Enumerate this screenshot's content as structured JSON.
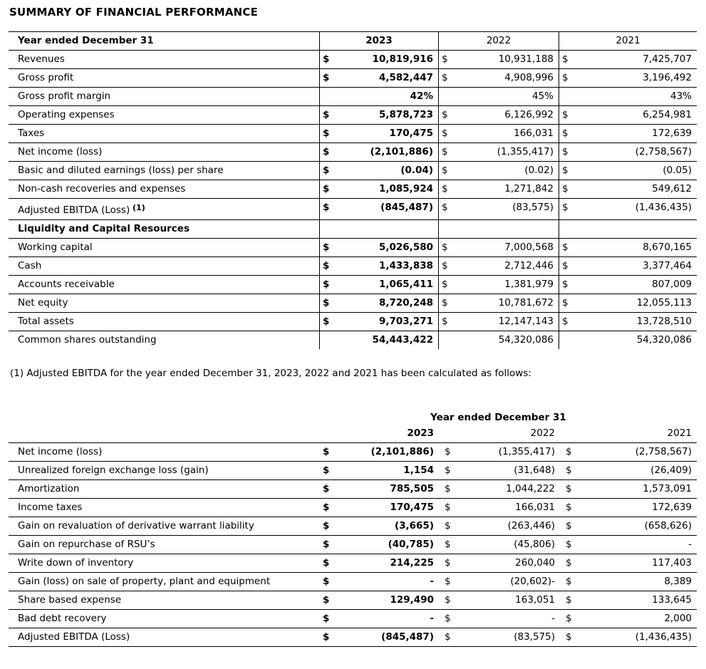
{
  "page_title": "SUMMARY OF FINANCIAL PERFORMANCE",
  "summary_table": {
    "header_label": "Year ended December 31",
    "years": [
      "2023",
      "2022",
      "2021"
    ],
    "rows": [
      {
        "label": "Revenues",
        "cells": [
          [
            "$",
            "10,819,916"
          ],
          [
            "$",
            "10,931,188"
          ],
          [
            "$",
            "7,425,707"
          ]
        ]
      },
      {
        "label": "Gross profit",
        "cells": [
          [
            "$",
            "4,582,447"
          ],
          [
            "$",
            "4,908,996"
          ],
          [
            "$",
            "3,196,492"
          ]
        ]
      },
      {
        "label": "Gross profit margin",
        "cells": [
          [
            "",
            "42%"
          ],
          [
            "",
            "45%"
          ],
          [
            "",
            "43%"
          ]
        ]
      },
      {
        "label": "Operating expenses",
        "cells": [
          [
            "$",
            "5,878,723"
          ],
          [
            "$",
            "6,126,992"
          ],
          [
            "$",
            "6,254,981"
          ]
        ]
      },
      {
        "label": "Taxes",
        "cells": [
          [
            "$",
            "170,475"
          ],
          [
            "$",
            "166,031"
          ],
          [
            "$",
            "172,639"
          ]
        ]
      },
      {
        "label": "Net income (loss)",
        "cells": [
          [
            "$",
            "(2,101,886)"
          ],
          [
            "$",
            "(1,355,417)"
          ],
          [
            "$",
            "(2,758,567)"
          ]
        ]
      },
      {
        "label": "Basic and diluted earnings (loss) per share",
        "cells": [
          [
            "$",
            "(0.04)"
          ],
          [
            "$",
            "(0.02)"
          ],
          [
            "$",
            "(0.05)"
          ]
        ]
      },
      {
        "label": "Non-cash recoveries and expenses",
        "cells": [
          [
            "$",
            "1,085,924"
          ],
          [
            "$",
            "1,271,842"
          ],
          [
            "$",
            "549,612"
          ]
        ]
      },
      {
        "label": "Adjusted EBITDA (Loss)",
        "sup": "(1)",
        "cells": [
          [
            "$",
            "(845,487)"
          ],
          [
            "$",
            "(83,575)"
          ],
          [
            "$",
            "(1,436,435)"
          ]
        ]
      },
      {
        "label": "Liquidity and Capital Resources",
        "type": "section",
        "cells": [
          [
            "",
            ""
          ],
          [
            "",
            ""
          ],
          [
            "",
            ""
          ]
        ]
      },
      {
        "label": "Working capital",
        "cells": [
          [
            "$",
            "5,026,580"
          ],
          [
            "$",
            "7,000,568"
          ],
          [
            "$",
            "8,670,165"
          ]
        ]
      },
      {
        "label": "Cash",
        "cells": [
          [
            "$",
            "1,433,838"
          ],
          [
            "$",
            "2,712,446"
          ],
          [
            "$",
            "3,377,464"
          ]
        ]
      },
      {
        "label": "Accounts receivable",
        "cells": [
          [
            "$",
            "1,065,411"
          ],
          [
            "$",
            "1,381,979"
          ],
          [
            "$",
            "807,009"
          ]
        ]
      },
      {
        "label": "Net equity",
        "cells": [
          [
            "$",
            "8,720,248"
          ],
          [
            "$",
            "10,781,672"
          ],
          [
            "$",
            "12,055,113"
          ]
        ]
      },
      {
        "label": "Total assets",
        "cells": [
          [
            "$",
            "9,703,271"
          ],
          [
            "$",
            "12,147,143"
          ],
          [
            "$",
            "13,728,510"
          ]
        ]
      },
      {
        "label": "Common shares outstanding",
        "cells": [
          [
            "",
            "54,443,422"
          ],
          [
            "",
            "54,320,086"
          ],
          [
            "",
            "54,320,086"
          ]
        ]
      }
    ]
  },
  "footnote": "(1) Adjusted EBITDA for the year ended December 31, 2023, 2022 and 2021 has been calculated as follows:",
  "ebitda_table": {
    "header_title": "Year ended December 31",
    "years": [
      "2023",
      "2022",
      "2021"
    ],
    "rows": [
      {
        "label": "Net income (loss)",
        "cells": [
          [
            "$",
            "(2,101,886)"
          ],
          [
            "$",
            "(1,355,417)"
          ],
          [
            "$",
            "(2,758,567)"
          ]
        ]
      },
      {
        "label": "Unrealized foreign exchange loss (gain)",
        "cells": [
          [
            "$",
            "1,154"
          ],
          [
            "$",
            "(31,648)"
          ],
          [
            "$",
            "(26,409)"
          ]
        ]
      },
      {
        "label": "Amortization",
        "cells": [
          [
            "$",
            "785,505"
          ],
          [
            "$",
            "1,044,222"
          ],
          [
            "$",
            "1,573,091"
          ]
        ]
      },
      {
        "label": "Income taxes",
        "cells": [
          [
            "$",
            "170,475"
          ],
          [
            "$",
            "166,031"
          ],
          [
            "$",
            "172,639"
          ]
        ]
      },
      {
        "label": "Gain on revaluation of derivative warrant liability",
        "cells": [
          [
            "$",
            "(3,665)"
          ],
          [
            "$",
            "(263,446)"
          ],
          [
            "$",
            "(658,626)"
          ]
        ]
      },
      {
        "label": "Gain on repurchase of RSU’s",
        "cells": [
          [
            "$",
            "(40,785)"
          ],
          [
            "$",
            "(45,806)"
          ],
          [
            "$",
            "-"
          ]
        ]
      },
      {
        "label": "Write down of inventory",
        "cells": [
          [
            "$",
            "214,225"
          ],
          [
            "$",
            "260,040"
          ],
          [
            "$",
            "117,403"
          ]
        ]
      },
      {
        "label": "Gain (loss) on sale of property, plant and equipment",
        "cells": [
          [
            "$",
            "-"
          ],
          [
            "$",
            "(20,602)-"
          ],
          [
            "$",
            "8,389"
          ]
        ]
      },
      {
        "label": "Share based expense",
        "cells": [
          [
            "$",
            "129,490"
          ],
          [
            "$",
            "163,051"
          ],
          [
            "$",
            "133,645"
          ]
        ]
      },
      {
        "label": "Bad debt recovery",
        "cells": [
          [
            "$",
            "-"
          ],
          [
            "$",
            "-"
          ],
          [
            "$",
            "2,000"
          ]
        ]
      },
      {
        "label": "Adjusted EBITDA (Loss)",
        "cells": [
          [
            "$",
            "(845,487)"
          ],
          [
            "$",
            "(83,575)"
          ],
          [
            "$",
            "(1,436,435)"
          ]
        ]
      }
    ]
  }
}
